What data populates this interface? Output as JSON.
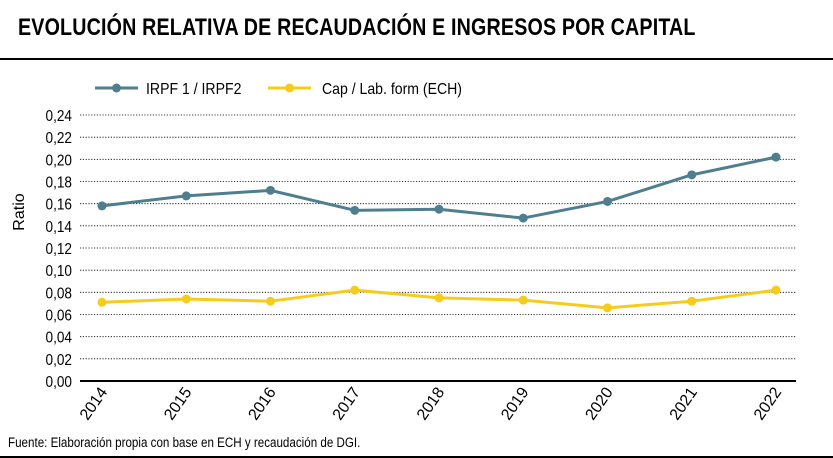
{
  "title": "EVOLUCIÓN RELATIVA DE RECAUDACIÓN E INGRESOS POR CAPITAL",
  "source": "Fuente: Elaboración propia con base en ECH y recaudación de DGI.",
  "chart_data": {
    "type": "line",
    "x": [
      "2014",
      "2015",
      "2016",
      "2017",
      "2018",
      "2019",
      "2020",
      "2021",
      "2022"
    ],
    "series": [
      {
        "name": "IRPF 1 / IRPF2",
        "color": "#4f7f8f",
        "values": [
          0.158,
          0.167,
          0.172,
          0.154,
          0.155,
          0.147,
          0.162,
          0.186,
          0.202
        ]
      },
      {
        "name": "Cap / Lab. form (ECH)",
        "color": "#f5cc1c",
        "values": [
          0.071,
          0.074,
          0.072,
          0.082,
          0.075,
          0.073,
          0.066,
          0.072,
          0.082
        ]
      }
    ],
    "ylabel": "Ratio",
    "xlabel": "",
    "ylim": [
      0,
      0.24
    ],
    "yticks": [
      "0,00",
      "0,02",
      "0,04",
      "0,06",
      "0,08",
      "0,10",
      "0,12",
      "0,14",
      "0,16",
      "0,18",
      "0,20",
      "0,22",
      "0,24"
    ],
    "grid": true,
    "legend": "top-left"
  }
}
